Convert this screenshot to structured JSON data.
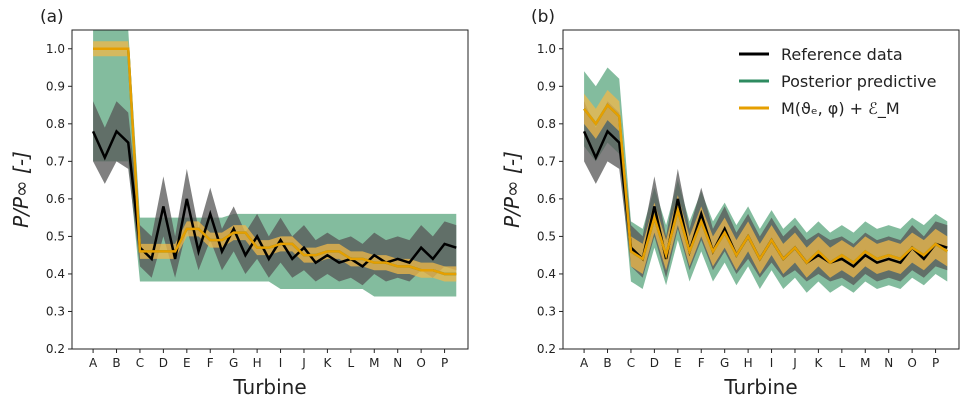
{
  "chart_data": [
    {
      "type": "line",
      "panel_label": "(a)",
      "xlabel": "Turbine",
      "ylabel": "P/P∞ [-]",
      "xlim": [
        -0.9,
        16
      ],
      "ylim": [
        0.2,
        1.05
      ],
      "yticks": [
        0.2,
        0.3,
        0.4,
        0.5,
        0.6,
        0.7,
        0.8,
        0.9,
        {
          "value": 1,
          "label": "1.0"
        }
      ],
      "xticks": [
        {
          "value": 0,
          "label": "A"
        },
        {
          "value": 1,
          "label": "B"
        },
        {
          "value": 2,
          "label": "C"
        },
        {
          "value": 3,
          "label": "D"
        },
        {
          "value": 4,
          "label": "E"
        },
        {
          "value": 5,
          "label": "F"
        },
        {
          "value": 6,
          "label": "G"
        },
        {
          "value": 7,
          "label": "H"
        },
        {
          "value": 8,
          "label": "I"
        },
        {
          "value": 9,
          "label": "J"
        },
        {
          "value": 10,
          "label": "K"
        },
        {
          "value": 11,
          "label": "L"
        },
        {
          "value": 12,
          "label": "M"
        },
        {
          "value": 13,
          "label": "N"
        },
        {
          "value": 14,
          "label": "O"
        },
        {
          "value": 15,
          "label": "P"
        }
      ],
      "x": [
        0,
        0.5,
        1,
        1.5,
        2,
        2.5,
        3,
        3.5,
        4,
        4.5,
        5,
        5.5,
        6,
        6.5,
        7,
        7.5,
        8,
        8.5,
        9,
        9.5,
        10,
        10.5,
        11,
        11.5,
        12,
        12.5,
        13,
        13.5,
        14,
        14.5,
        15,
        15.5
      ],
      "series": [
        {
          "color": "#2e8b60",
          "band_color": "#5aa57e",
          "values": [
            1,
            1,
            1,
            1,
            0.46,
            0.46,
            0.46,
            0.46,
            0.52,
            0.52,
            0.49,
            0.49,
            0.51,
            0.51,
            0.47,
            0.47,
            0.48,
            0.48,
            0.45,
            0.45,
            0.46,
            0.46,
            0.44,
            0.44,
            0.43,
            0.43,
            0.42,
            0.42,
            0.41,
            0.41,
            0.4,
            0.4
          ],
          "lower": [
            0.7,
            0.7,
            0.7,
            0.7,
            0.38,
            0.38,
            0.38,
            0.38,
            0.38,
            0.38,
            0.38,
            0.38,
            0.38,
            0.38,
            0.38,
            0.38,
            0.36,
            0.36,
            0.36,
            0.36,
            0.36,
            0.36,
            0.36,
            0.36,
            0.34,
            0.34,
            0.34,
            0.34,
            0.34,
            0.34,
            0.34,
            0.34
          ],
          "upper": [
            1.05,
            1.05,
            1.05,
            1.05,
            0.55,
            0.55,
            0.55,
            0.55,
            0.55,
            0.55,
            0.55,
            0.55,
            0.56,
            0.56,
            0.56,
            0.56,
            0.56,
            0.56,
            0.56,
            0.56,
            0.56,
            0.56,
            0.56,
            0.56,
            0.56,
            0.56,
            0.56,
            0.56,
            0.56,
            0.56,
            0.56,
            0.56
          ]
        },
        {
          "color": "#000000",
          "band_color": "#555555",
          "values": [
            0.78,
            0.71,
            0.78,
            0.75,
            0.47,
            0.44,
            0.58,
            0.44,
            0.6,
            0.46,
            0.56,
            0.46,
            0.52,
            0.45,
            0.5,
            0.44,
            0.49,
            0.44,
            0.47,
            0.43,
            0.45,
            0.43,
            0.44,
            0.42,
            0.45,
            0.43,
            0.44,
            0.43,
            0.47,
            0.44,
            0.48,
            0.47
          ],
          "lower": [
            0.7,
            0.64,
            0.7,
            0.68,
            0.42,
            0.39,
            0.5,
            0.39,
            0.52,
            0.41,
            0.49,
            0.41,
            0.46,
            0.4,
            0.44,
            0.39,
            0.43,
            0.39,
            0.41,
            0.38,
            0.4,
            0.38,
            0.39,
            0.37,
            0.4,
            0.38,
            0.39,
            0.38,
            0.41,
            0.39,
            0.42,
            0.41
          ],
          "upper": [
            0.86,
            0.79,
            0.86,
            0.83,
            0.53,
            0.5,
            0.66,
            0.5,
            0.68,
            0.52,
            0.63,
            0.52,
            0.58,
            0.51,
            0.56,
            0.5,
            0.55,
            0.5,
            0.53,
            0.49,
            0.51,
            0.49,
            0.5,
            0.48,
            0.51,
            0.49,
            0.5,
            0.49,
            0.53,
            0.5,
            0.54,
            0.53
          ]
        },
        {
          "color": "#e69f00",
          "band_color": "#f0b84a",
          "values": [
            1,
            1,
            1,
            1,
            0.46,
            0.46,
            0.46,
            0.46,
            0.52,
            0.52,
            0.49,
            0.49,
            0.51,
            0.51,
            0.47,
            0.47,
            0.48,
            0.48,
            0.45,
            0.45,
            0.46,
            0.46,
            0.44,
            0.44,
            0.43,
            0.43,
            0.42,
            0.42,
            0.41,
            0.41,
            0.4,
            0.4
          ],
          "lower": [
            0.98,
            0.98,
            0.98,
            0.98,
            0.44,
            0.44,
            0.44,
            0.44,
            0.5,
            0.5,
            0.47,
            0.47,
            0.49,
            0.49,
            0.45,
            0.45,
            0.46,
            0.46,
            0.43,
            0.43,
            0.44,
            0.44,
            0.42,
            0.42,
            0.41,
            0.41,
            0.4,
            0.4,
            0.39,
            0.39,
            0.38,
            0.38
          ],
          "upper": [
            1.02,
            1.02,
            1.02,
            1.02,
            0.48,
            0.48,
            0.48,
            0.48,
            0.54,
            0.54,
            0.51,
            0.51,
            0.53,
            0.53,
            0.49,
            0.49,
            0.5,
            0.5,
            0.47,
            0.47,
            0.48,
            0.48,
            0.46,
            0.46,
            0.45,
            0.45,
            0.44,
            0.44,
            0.43,
            0.43,
            0.42,
            0.42
          ]
        }
      ]
    },
    {
      "type": "line",
      "panel_label": "(b)",
      "xlabel": "Turbine",
      "ylabel": "P/P∞ [-]",
      "legend": "upper right",
      "xlim": [
        -0.9,
        16
      ],
      "ylim": [
        0.2,
        1.05
      ],
      "yticks": [
        0.2,
        0.3,
        0.4,
        0.5,
        0.6,
        0.7,
        0.8,
        0.9,
        {
          "value": 1,
          "label": "1.0"
        }
      ],
      "xticks": [
        {
          "value": 0,
          "label": "A"
        },
        {
          "value": 1,
          "label": "B"
        },
        {
          "value": 2,
          "label": "C"
        },
        {
          "value": 3,
          "label": "D"
        },
        {
          "value": 4,
          "label": "E"
        },
        {
          "value": 5,
          "label": "F"
        },
        {
          "value": 6,
          "label": "G"
        },
        {
          "value": 7,
          "label": "H"
        },
        {
          "value": 8,
          "label": "I"
        },
        {
          "value": 9,
          "label": "J"
        },
        {
          "value": 10,
          "label": "K"
        },
        {
          "value": 11,
          "label": "L"
        },
        {
          "value": 12,
          "label": "M"
        },
        {
          "value": 13,
          "label": "N"
        },
        {
          "value": 14,
          "label": "O"
        },
        {
          "value": 15,
          "label": "P"
        }
      ],
      "x": [
        0,
        0.5,
        1,
        1.5,
        2,
        2.5,
        3,
        3.5,
        4,
        4.5,
        5,
        5.5,
        6,
        6.5,
        7,
        7.5,
        8,
        8.5,
        9,
        9.5,
        10,
        10.5,
        11,
        11.5,
        12,
        12.5,
        13,
        13.5,
        14,
        14.5,
        15,
        15.5
      ],
      "series": [
        {
          "name": "Posterior predictive",
          "color": "#2e8b60",
          "band_color": "#5aa57e",
          "values": [
            0.84,
            0.8,
            0.85,
            0.82,
            0.46,
            0.44,
            0.55,
            0.45,
            0.57,
            0.46,
            0.54,
            0.46,
            0.51,
            0.45,
            0.5,
            0.44,
            0.49,
            0.44,
            0.47,
            0.43,
            0.46,
            0.43,
            0.45,
            0.43,
            0.46,
            0.44,
            0.45,
            0.44,
            0.47,
            0.45,
            0.48,
            0.46
          ],
          "lower": [
            0.74,
            0.7,
            0.75,
            0.72,
            0.38,
            0.36,
            0.47,
            0.37,
            0.49,
            0.38,
            0.46,
            0.38,
            0.43,
            0.37,
            0.42,
            0.36,
            0.41,
            0.36,
            0.39,
            0.35,
            0.38,
            0.35,
            0.37,
            0.35,
            0.38,
            0.36,
            0.37,
            0.36,
            0.39,
            0.37,
            0.4,
            0.38
          ],
          "upper": [
            0.94,
            0.9,
            0.95,
            0.92,
            0.54,
            0.52,
            0.63,
            0.53,
            0.65,
            0.54,
            0.62,
            0.54,
            0.59,
            0.53,
            0.58,
            0.52,
            0.57,
            0.52,
            0.55,
            0.51,
            0.54,
            0.51,
            0.53,
            0.51,
            0.54,
            0.52,
            0.53,
            0.52,
            0.55,
            0.53,
            0.56,
            0.54
          ]
        },
        {
          "name": "Reference data",
          "color": "#000000",
          "band_color": "#555555",
          "values": [
            0.78,
            0.71,
            0.78,
            0.75,
            0.47,
            0.44,
            0.58,
            0.44,
            0.6,
            0.46,
            0.56,
            0.46,
            0.52,
            0.45,
            0.5,
            0.44,
            0.49,
            0.44,
            0.47,
            0.43,
            0.45,
            0.43,
            0.44,
            0.42,
            0.45,
            0.43,
            0.44,
            0.43,
            0.47,
            0.44,
            0.48,
            0.47
          ],
          "lower": [
            0.7,
            0.64,
            0.7,
            0.68,
            0.42,
            0.39,
            0.5,
            0.39,
            0.52,
            0.41,
            0.49,
            0.41,
            0.46,
            0.4,
            0.44,
            0.39,
            0.43,
            0.39,
            0.41,
            0.38,
            0.4,
            0.38,
            0.39,
            0.37,
            0.4,
            0.38,
            0.39,
            0.38,
            0.41,
            0.39,
            0.42,
            0.41
          ],
          "upper": [
            0.86,
            0.79,
            0.86,
            0.83,
            0.53,
            0.5,
            0.66,
            0.5,
            0.68,
            0.52,
            0.63,
            0.52,
            0.58,
            0.51,
            0.56,
            0.5,
            0.55,
            0.5,
            0.53,
            0.49,
            0.51,
            0.49,
            0.5,
            0.48,
            0.51,
            0.49,
            0.5,
            0.49,
            0.53,
            0.5,
            0.54,
            0.53
          ]
        },
        {
          "name": "M(ϑₑ, φ) + ℰ_M",
          "color": "#e69f00",
          "band_color": "#f0b84a",
          "values": [
            0.84,
            0.8,
            0.85,
            0.82,
            0.46,
            0.44,
            0.55,
            0.45,
            0.57,
            0.46,
            0.54,
            0.46,
            0.51,
            0.45,
            0.5,
            0.44,
            0.49,
            0.44,
            0.47,
            0.43,
            0.46,
            0.43,
            0.45,
            0.43,
            0.46,
            0.44,
            0.45,
            0.44,
            0.47,
            0.45,
            0.48,
            0.46
          ],
          "lower": [
            0.8,
            0.76,
            0.81,
            0.78,
            0.42,
            0.4,
            0.51,
            0.41,
            0.53,
            0.42,
            0.5,
            0.42,
            0.47,
            0.41,
            0.46,
            0.4,
            0.45,
            0.4,
            0.43,
            0.39,
            0.42,
            0.39,
            0.41,
            0.39,
            0.42,
            0.4,
            0.41,
            0.4,
            0.43,
            0.41,
            0.44,
            0.42
          ],
          "upper": [
            0.88,
            0.84,
            0.89,
            0.86,
            0.5,
            0.48,
            0.59,
            0.49,
            0.61,
            0.5,
            0.58,
            0.5,
            0.55,
            0.49,
            0.54,
            0.48,
            0.53,
            0.48,
            0.51,
            0.47,
            0.5,
            0.47,
            0.49,
            0.47,
            0.5,
            0.48,
            0.49,
            0.48,
            0.51,
            0.49,
            0.52,
            0.5
          ]
        }
      ]
    }
  ]
}
